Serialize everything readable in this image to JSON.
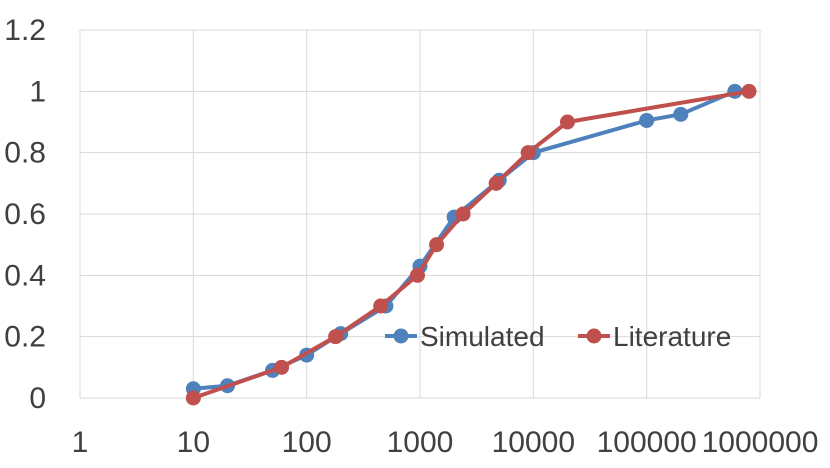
{
  "chart_data": {
    "type": "line",
    "x_scale": "log",
    "xlim": [
      1,
      1000000
    ],
    "ylim": [
      0,
      1.2
    ],
    "x_ticks": [
      "1",
      "10",
      "100",
      "1000",
      "10000",
      "100000",
      "1000000"
    ],
    "y_ticks": [
      "0",
      "0.2",
      "0.4",
      "0.6",
      "0.8",
      "1",
      "1.2"
    ],
    "grid": true,
    "legend_position": "bottom-right",
    "series": [
      {
        "name": "Simulated",
        "color": "#4f81bd",
        "points": [
          [
            10,
            0.03
          ],
          [
            20,
            0.04
          ],
          [
            50,
            0.09
          ],
          [
            100,
            0.14
          ],
          [
            200,
            0.21
          ],
          [
            500,
            0.3
          ],
          [
            1000,
            0.43
          ],
          [
            2000,
            0.59
          ],
          [
            5000,
            0.71
          ],
          [
            10000,
            0.8
          ],
          [
            100000,
            0.905
          ],
          [
            200000,
            0.925
          ],
          [
            600000,
            1.0
          ]
        ]
      },
      {
        "name": "Literature",
        "color": "#c0504d",
        "points": [
          [
            10,
            0.0
          ],
          [
            60,
            0.1
          ],
          [
            180,
            0.2
          ],
          [
            450,
            0.3
          ],
          [
            950,
            0.4
          ],
          [
            1400,
            0.5
          ],
          [
            2400,
            0.6
          ],
          [
            4700,
            0.7
          ],
          [
            9000,
            0.8
          ],
          [
            20000,
            0.9
          ],
          [
            800000,
            1.0
          ]
        ]
      }
    ]
  }
}
